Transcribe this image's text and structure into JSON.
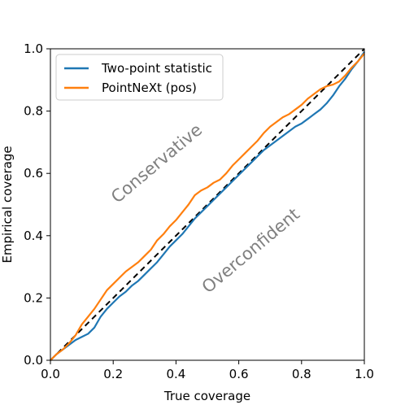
{
  "chart_data": {
    "type": "line",
    "title": "",
    "xlabel": "True coverage",
    "ylabel": "Empirical coverage",
    "xlim": [
      0.0,
      1.0
    ],
    "ylim": [
      0.0,
      1.0
    ],
    "xticks": [
      "0.0",
      "0.2",
      "0.4",
      "0.6",
      "0.8",
      "1.0"
    ],
    "yticks": [
      "0.0",
      "0.2",
      "0.4",
      "0.6",
      "0.8",
      "1.0"
    ],
    "grid": false,
    "legend_position": "upper-left",
    "reference_line": {
      "style": "dashed",
      "color": "#000000",
      "from": [
        0,
        0
      ],
      "to": [
        1,
        1
      ]
    },
    "annotations": [
      {
        "text": "Conservative",
        "x": 0.34,
        "y": 0.63,
        "rotation": -40
      },
      {
        "text": "Overconfident",
        "x": 0.64,
        "y": 0.35,
        "rotation": -40
      }
    ],
    "series": [
      {
        "name": "Two-point statistic",
        "color": "#1f77b4",
        "points": [
          [
            0.0,
            0.0
          ],
          [
            0.02,
            0.02
          ],
          [
            0.04,
            0.035
          ],
          [
            0.06,
            0.05
          ],
          [
            0.08,
            0.065
          ],
          [
            0.1,
            0.075
          ],
          [
            0.12,
            0.085
          ],
          [
            0.14,
            0.105
          ],
          [
            0.16,
            0.14
          ],
          [
            0.18,
            0.165
          ],
          [
            0.2,
            0.185
          ],
          [
            0.22,
            0.205
          ],
          [
            0.24,
            0.22
          ],
          [
            0.26,
            0.24
          ],
          [
            0.28,
            0.255
          ],
          [
            0.3,
            0.275
          ],
          [
            0.32,
            0.295
          ],
          [
            0.34,
            0.315
          ],
          [
            0.36,
            0.34
          ],
          [
            0.38,
            0.365
          ],
          [
            0.4,
            0.385
          ],
          [
            0.42,
            0.405
          ],
          [
            0.44,
            0.43
          ],
          [
            0.46,
            0.455
          ],
          [
            0.48,
            0.475
          ],
          [
            0.5,
            0.495
          ],
          [
            0.52,
            0.515
          ],
          [
            0.54,
            0.535
          ],
          [
            0.56,
            0.555
          ],
          [
            0.58,
            0.575
          ],
          [
            0.6,
            0.595
          ],
          [
            0.62,
            0.615
          ],
          [
            0.64,
            0.635
          ],
          [
            0.66,
            0.655
          ],
          [
            0.68,
            0.675
          ],
          [
            0.7,
            0.69
          ],
          [
            0.72,
            0.705
          ],
          [
            0.74,
            0.72
          ],
          [
            0.76,
            0.735
          ],
          [
            0.78,
            0.75
          ],
          [
            0.8,
            0.76
          ],
          [
            0.82,
            0.775
          ],
          [
            0.84,
            0.79
          ],
          [
            0.86,
            0.805
          ],
          [
            0.88,
            0.825
          ],
          [
            0.9,
            0.85
          ],
          [
            0.92,
            0.88
          ],
          [
            0.94,
            0.905
          ],
          [
            0.96,
            0.935
          ],
          [
            0.98,
            0.96
          ],
          [
            1.0,
            0.99
          ]
        ]
      },
      {
        "name": "PointNeXt (pos)",
        "color": "#ff7f0e",
        "points": [
          [
            0.0,
            0.0
          ],
          [
            0.02,
            0.02
          ],
          [
            0.04,
            0.035
          ],
          [
            0.06,
            0.055
          ],
          [
            0.08,
            0.08
          ],
          [
            0.1,
            0.115
          ],
          [
            0.12,
            0.14
          ],
          [
            0.14,
            0.165
          ],
          [
            0.16,
            0.195
          ],
          [
            0.18,
            0.225
          ],
          [
            0.2,
            0.245
          ],
          [
            0.22,
            0.265
          ],
          [
            0.24,
            0.285
          ],
          [
            0.26,
            0.3
          ],
          [
            0.28,
            0.315
          ],
          [
            0.3,
            0.335
          ],
          [
            0.32,
            0.355
          ],
          [
            0.34,
            0.385
          ],
          [
            0.36,
            0.405
          ],
          [
            0.38,
            0.43
          ],
          [
            0.4,
            0.45
          ],
          [
            0.42,
            0.475
          ],
          [
            0.44,
            0.5
          ],
          [
            0.46,
            0.53
          ],
          [
            0.48,
            0.545
          ],
          [
            0.5,
            0.555
          ],
          [
            0.52,
            0.57
          ],
          [
            0.54,
            0.58
          ],
          [
            0.56,
            0.6
          ],
          [
            0.58,
            0.625
          ],
          [
            0.6,
            0.645
          ],
          [
            0.62,
            0.665
          ],
          [
            0.64,
            0.685
          ],
          [
            0.66,
            0.705
          ],
          [
            0.68,
            0.73
          ],
          [
            0.7,
            0.75
          ],
          [
            0.72,
            0.765
          ],
          [
            0.74,
            0.78
          ],
          [
            0.76,
            0.79
          ],
          [
            0.78,
            0.805
          ],
          [
            0.8,
            0.82
          ],
          [
            0.82,
            0.84
          ],
          [
            0.84,
            0.855
          ],
          [
            0.86,
            0.87
          ],
          [
            0.88,
            0.88
          ],
          [
            0.9,
            0.885
          ],
          [
            0.92,
            0.895
          ],
          [
            0.94,
            0.915
          ],
          [
            0.96,
            0.94
          ],
          [
            0.98,
            0.96
          ],
          [
            1.0,
            0.985
          ]
        ]
      }
    ]
  }
}
